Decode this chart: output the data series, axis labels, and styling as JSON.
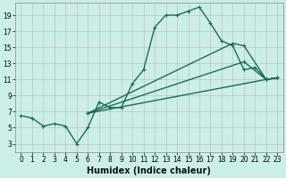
{
  "background_color": "#cceee8",
  "grid_color": "#b8b8b8",
  "line_color": "#1a6b5a",
  "xlabel": "Humidex (Indice chaleur)",
  "xlim": [
    -0.5,
    23.5
  ],
  "ylim": [
    2.0,
    20.5
  ],
  "xticks": [
    0,
    1,
    2,
    3,
    4,
    5,
    6,
    7,
    8,
    9,
    10,
    11,
    12,
    13,
    14,
    15,
    16,
    17,
    18,
    19,
    20,
    21,
    22,
    23
  ],
  "yticks": [
    3,
    5,
    7,
    9,
    11,
    13,
    15,
    17,
    19
  ],
  "series": [
    {
      "x": [
        0,
        1,
        2,
        3,
        4,
        5,
        6,
        7,
        8,
        9,
        10,
        11,
        12,
        13,
        14,
        15,
        16,
        17,
        18,
        19,
        20,
        21,
        22,
        23
      ],
      "y": [
        6.5,
        6.2,
        5.2,
        5.5,
        5.2,
        3.0,
        5.0,
        8.2,
        7.5,
        7.5,
        10.5,
        12.2,
        17.5,
        19.0,
        19.0,
        19.5,
        20.0,
        18.0,
        15.8,
        15.2,
        12.2,
        12.5,
        11.0,
        11.2
      ]
    },
    {
      "x": [
        6,
        22,
        23
      ],
      "y": [
        6.8,
        11.0,
        11.2
      ]
    },
    {
      "x": [
        6,
        20,
        22,
        23
      ],
      "y": [
        6.8,
        13.2,
        11.0,
        11.2
      ]
    },
    {
      "x": [
        6,
        19,
        20,
        22,
        23
      ],
      "y": [
        6.8,
        15.5,
        15.2,
        11.0,
        11.2
      ]
    }
  ],
  "xlabel_fontsize": 7,
  "xlabel_fontweight": "bold",
  "tick_fontsize": 5.5,
  "linewidth": 1.0,
  "markersize": 3,
  "markeredgewidth": 0.8
}
